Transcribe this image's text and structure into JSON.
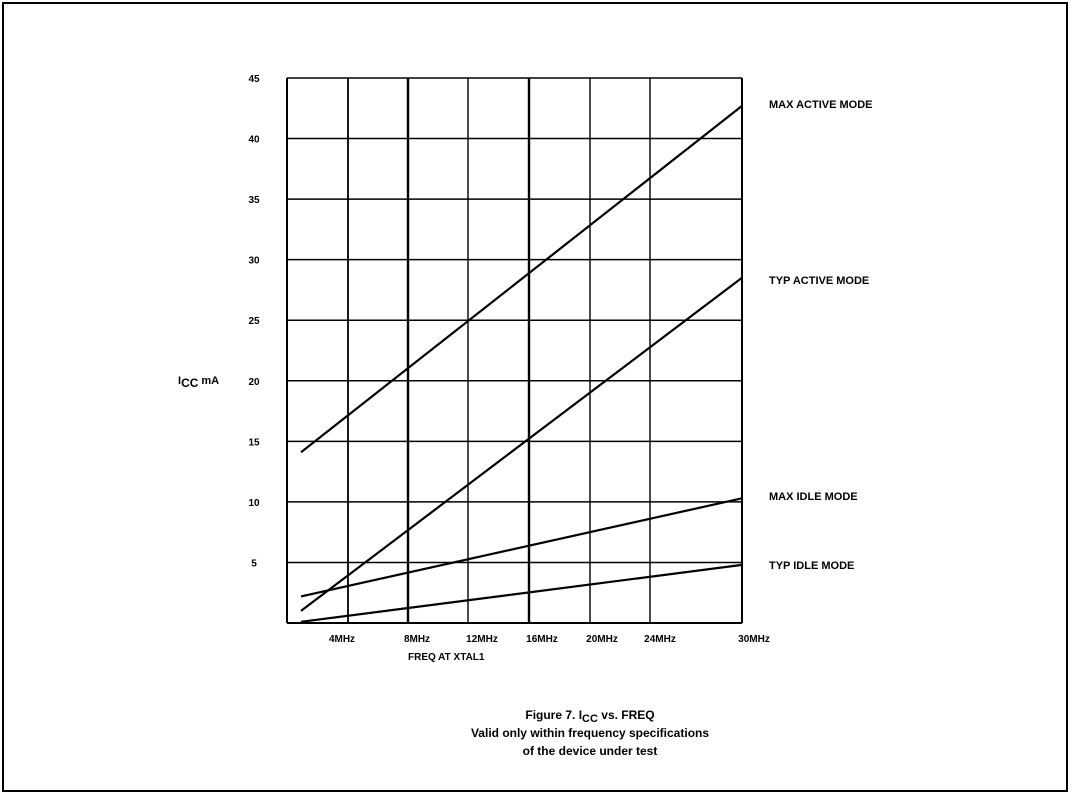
{
  "chart_data": {
    "type": "line",
    "ylabel": {
      "main": "I",
      "sub": "CC",
      "unit": "mA"
    },
    "xlabel": "FREQ AT XTAL1",
    "ylim": [
      0,
      45
    ],
    "yticks": [
      {
        "value": 5,
        "label": "5"
      },
      {
        "value": 10,
        "label": "10"
      },
      {
        "value": 15,
        "label": "15"
      },
      {
        "value": 20,
        "label": "20"
      },
      {
        "value": 25,
        "label": "25"
      },
      {
        "value": 30,
        "label": "30"
      },
      {
        "value": 35,
        "label": "35"
      },
      {
        "value": 40,
        "label": "40"
      },
      {
        "value": 45,
        "label": "45"
      }
    ],
    "xticks": [
      {
        "value": 4,
        "label": "4MHz"
      },
      {
        "value": 8,
        "label": "8MHz"
      },
      {
        "value": 12,
        "label": "12MHz"
      },
      {
        "value": 16,
        "label": "16MHz"
      },
      {
        "value": 20,
        "label": "20MHz"
      },
      {
        "value": 24,
        "label": "24MHz"
      },
      {
        "value": 30,
        "label": "30MHz"
      }
    ],
    "grid": true,
    "series": [
      {
        "name": "MAX ACTIVE MODE",
        "x": [
          1.3,
          30
        ],
        "y": [
          14.1,
          42.7
        ]
      },
      {
        "name": "TYP ACTIVE MODE",
        "x": [
          1.3,
          30
        ],
        "y": [
          1.0,
          28.5
        ]
      },
      {
        "name": "MAX IDLE MODE",
        "x": [
          1.3,
          30
        ],
        "y": [
          2.2,
          10.3
        ]
      },
      {
        "name": "TYP IDLE MODE",
        "x": [
          1.3,
          30
        ],
        "y": [
          0.1,
          4.8
        ]
      }
    ]
  },
  "caption": {
    "line1_prefix": "Figure 7. I",
    "line1_sub": "CC",
    "line1_suffix": " vs. FREQ",
    "line2": "Valid only within frequency specifications",
    "line3": "of the device under test"
  }
}
